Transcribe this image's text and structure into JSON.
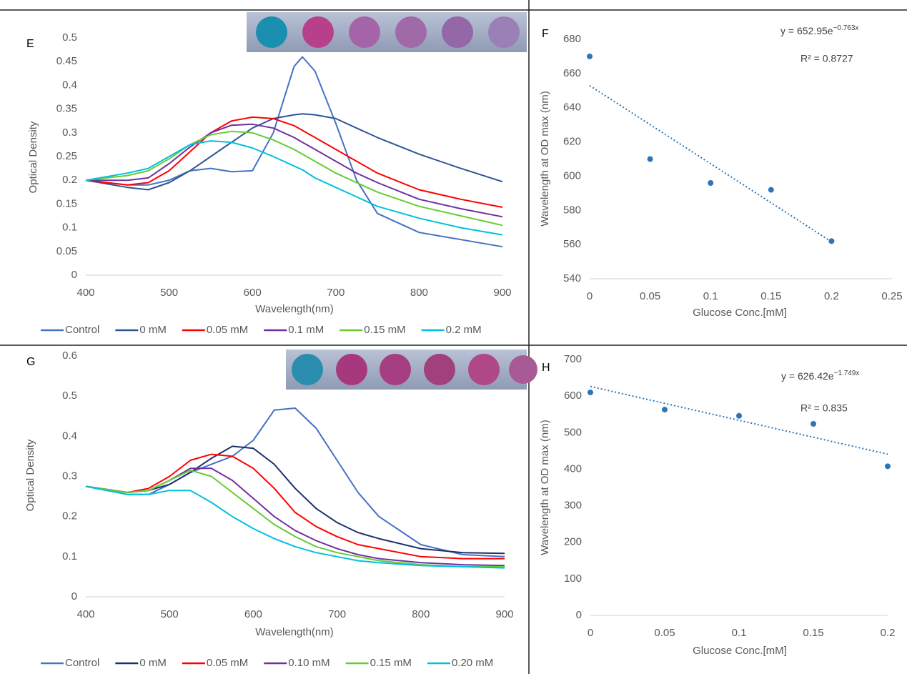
{
  "chart_data": [
    {
      "type": "line",
      "label": "E",
      "x_label": "Wavelength(nm)",
      "y_label": "Optical Density",
      "x": [
        400,
        450,
        475,
        500,
        525,
        550,
        575,
        600,
        625,
        650,
        660,
        675,
        700,
        725,
        750,
        800,
        850,
        900
      ],
      "series": [
        {
          "name": "Control",
          "color": "#4472c4",
          "values": [
            0.2,
            0.19,
            0.19,
            0.2,
            0.22,
            0.225,
            0.218,
            0.22,
            0.3,
            0.44,
            0.46,
            0.43,
            0.32,
            0.2,
            0.13,
            0.09,
            0.075,
            0.06
          ]
        },
        {
          "name": "0 mM",
          "color": "#2f5597",
          "values": [
            0.2,
            0.185,
            0.18,
            0.195,
            0.22,
            0.25,
            0.28,
            0.31,
            0.33,
            0.338,
            0.34,
            0.338,
            0.33,
            0.31,
            0.29,
            0.255,
            0.225,
            0.197
          ]
        },
        {
          "name": "0.05 mM",
          "color": "#ff0000",
          "values": [
            0.2,
            0.19,
            0.195,
            0.22,
            0.26,
            0.3,
            0.325,
            0.333,
            0.33,
            0.315,
            0.305,
            0.29,
            0.265,
            0.24,
            0.215,
            0.18,
            0.16,
            0.143
          ]
        },
        {
          "name": "0.1 mM",
          "color": "#7030a0",
          "values": [
            0.2,
            0.2,
            0.205,
            0.235,
            0.27,
            0.3,
            0.316,
            0.318,
            0.31,
            0.29,
            0.28,
            0.265,
            0.24,
            0.215,
            0.195,
            0.16,
            0.14,
            0.123
          ]
        },
        {
          "name": "0.15 mM",
          "color": "#66cc33",
          "values": [
            0.2,
            0.21,
            0.22,
            0.245,
            0.275,
            0.296,
            0.303,
            0.3,
            0.285,
            0.265,
            0.255,
            0.24,
            0.215,
            0.195,
            0.175,
            0.145,
            0.125,
            0.105
          ]
        },
        {
          "name": "0.2 mM",
          "color": "#00c0e0",
          "values": [
            0.2,
            0.215,
            0.225,
            0.25,
            0.275,
            0.283,
            0.28,
            0.268,
            0.25,
            0.23,
            0.222,
            0.205,
            0.185,
            0.165,
            0.145,
            0.12,
            0.1,
            0.085
          ]
        }
      ],
      "xlim": [
        400,
        900
      ],
      "xticks": [
        400,
        500,
        600,
        700,
        800,
        900
      ],
      "ylim": [
        0,
        0.5
      ],
      "yticks": [
        0,
        0.05,
        0.1,
        0.15,
        0.2,
        0.25,
        0.3,
        0.35,
        0.4,
        0.45,
        0.5
      ]
    },
    {
      "type": "scatter",
      "label": "F",
      "x_label": "Glucose Conc.[mM]",
      "y_label": "Wavelength at OD max (nm)",
      "x": [
        0,
        0.05,
        0.1,
        0.15,
        0.2
      ],
      "values": [
        670,
        610,
        596,
        592,
        562
      ],
      "color": "#2e75b6",
      "trendline": {
        "x": [
          0,
          0.2
        ],
        "values": [
          652.95,
          561.6
        ]
      },
      "equation": {
        "base": "y = 652.95e",
        "exponent": "−0.763x"
      },
      "r_squared": "R² = 0.8727",
      "xlim": [
        0,
        0.25
      ],
      "xticks": [
        0,
        0.05,
        0.1,
        0.15,
        0.2,
        0.25
      ],
      "ylim": [
        540,
        680
      ],
      "yticks": [
        540,
        560,
        580,
        600,
        620,
        640,
        660,
        680
      ]
    },
    {
      "type": "line",
      "label": "G",
      "x_label": "Wavelength(nm)",
      "y_label": "Optical Density",
      "x": [
        400,
        450,
        475,
        500,
        525,
        550,
        575,
        600,
        625,
        650,
        675,
        700,
        725,
        750,
        800,
        850,
        900
      ],
      "series": [
        {
          "name": "Control",
          "color": "#4472c4",
          "values": [
            0.275,
            0.255,
            0.255,
            0.28,
            0.31,
            0.33,
            0.35,
            0.39,
            0.465,
            0.47,
            0.42,
            0.34,
            0.26,
            0.2,
            0.13,
            0.105,
            0.1
          ]
        },
        {
          "name": "0 mM",
          "color": "#1f2f6e",
          "values": [
            0.275,
            0.26,
            0.265,
            0.28,
            0.31,
            0.345,
            0.375,
            0.37,
            0.33,
            0.27,
            0.22,
            0.185,
            0.16,
            0.145,
            0.12,
            0.11,
            0.108
          ]
        },
        {
          "name": "0.05 mM",
          "color": "#ff0000",
          "values": [
            0.275,
            0.26,
            0.27,
            0.3,
            0.34,
            0.355,
            0.35,
            0.32,
            0.27,
            0.21,
            0.175,
            0.15,
            0.13,
            0.12,
            0.1,
            0.095,
            0.095
          ]
        },
        {
          "name": "0.10 mM",
          "color": "#7030a0",
          "values": [
            0.275,
            0.26,
            0.265,
            0.29,
            0.32,
            0.32,
            0.29,
            0.245,
            0.2,
            0.165,
            0.14,
            0.12,
            0.105,
            0.095,
            0.085,
            0.08,
            0.078
          ]
        },
        {
          "name": "0.15 mM",
          "color": "#66cc33",
          "values": [
            0.275,
            0.26,
            0.265,
            0.29,
            0.315,
            0.3,
            0.26,
            0.22,
            0.18,
            0.15,
            0.125,
            0.11,
            0.1,
            0.09,
            0.08,
            0.075,
            0.075
          ]
        },
        {
          "name": "0.20 mM",
          "color": "#00c0e0",
          "values": [
            0.275,
            0.255,
            0.255,
            0.265,
            0.265,
            0.235,
            0.2,
            0.17,
            0.145,
            0.125,
            0.11,
            0.1,
            0.09,
            0.085,
            0.078,
            0.075,
            0.072
          ]
        }
      ],
      "xlim": [
        400,
        900
      ],
      "xticks": [
        400,
        500,
        600,
        700,
        800,
        900
      ],
      "ylim": [
        0,
        0.6
      ],
      "yticks": [
        0,
        0.1,
        0.2,
        0.3,
        0.4,
        0.5,
        0.6
      ]
    },
    {
      "type": "scatter",
      "label": "H",
      "x_label": "Glucose Conc.[mM]",
      "y_label": "Wavelength at OD max (nm)",
      "x": [
        0,
        0.05,
        0.1,
        0.15,
        0.2
      ],
      "values": [
        610,
        563,
        546,
        524,
        408
      ],
      "color": "#2e75b6",
      "trendline": {
        "x": [
          0,
          0.2
        ],
        "values": [
          626.42,
          441
        ]
      },
      "equation": {
        "base": "y = 626.42e",
        "exponent": "−1.749x"
      },
      "r_squared": "R² = 0.835",
      "xlim": [
        0,
        0.2
      ],
      "xticks": [
        0,
        0.05,
        0.1,
        0.15,
        0.2
      ],
      "ylim": [
        0,
        700
      ],
      "yticks": [
        0,
        100,
        200,
        300,
        400,
        500,
        600,
        700
      ]
    }
  ]
}
